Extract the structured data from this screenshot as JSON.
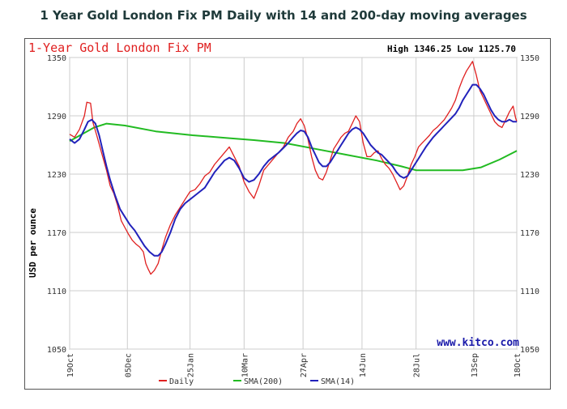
{
  "page_title": "1 Year Gold London Fix PM Daily with 14 and 200-day moving averages",
  "chart_data": {
    "type": "line",
    "title": "1-Year Gold London Fix PM",
    "high_low_text": "High 1346.25 Low 1125.70",
    "ylabel": "USD per ounce",
    "ylim": [
      1050,
      1350
    ],
    "yticks": [
      1050,
      1110,
      1170,
      1230,
      1290,
      1350
    ],
    "grid": true,
    "legend_position": "bottom",
    "watermark": "www.kitco.com",
    "x_ticks": [
      {
        "label": "19Oct",
        "day": 0
      },
      {
        "label": "05Dec",
        "day": 47
      },
      {
        "label": "25Jan",
        "day": 98
      },
      {
        "label": "10Mar",
        "day": 142
      },
      {
        "label": "27Apr",
        "day": 190
      },
      {
        "label": "14Jun",
        "day": 238
      },
      {
        "label": "28Jul",
        "day": 282
      },
      {
        "label": "13Sep",
        "day": 329
      },
      {
        "label": "18Oct",
        "day": 364
      }
    ],
    "series": [
      {
        "name": "Daily",
        "color": "#e02020",
        "points": [
          [
            0,
            1271
          ],
          [
            4,
            1268
          ],
          [
            8,
            1276
          ],
          [
            12,
            1290
          ],
          [
            14,
            1304
          ],
          [
            17,
            1303
          ],
          [
            19,
            1283
          ],
          [
            22,
            1270
          ],
          [
            26,
            1252
          ],
          [
            30,
            1234
          ],
          [
            33,
            1218
          ],
          [
            36,
            1210
          ],
          [
            39,
            1198
          ],
          [
            42,
            1182
          ],
          [
            45,
            1175
          ],
          [
            48,
            1168
          ],
          [
            51,
            1162
          ],
          [
            54,
            1158
          ],
          [
            57,
            1155
          ],
          [
            60,
            1150
          ],
          [
            62,
            1138
          ],
          [
            64,
            1132
          ],
          [
            66,
            1127
          ],
          [
            69,
            1131
          ],
          [
            72,
            1138
          ],
          [
            75,
            1152
          ],
          [
            78,
            1165
          ],
          [
            82,
            1178
          ],
          [
            86,
            1188
          ],
          [
            90,
            1196
          ],
          [
            94,
            1204
          ],
          [
            98,
            1212
          ],
          [
            102,
            1214
          ],
          [
            106,
            1220
          ],
          [
            110,
            1228
          ],
          [
            114,
            1232
          ],
          [
            118,
            1240
          ],
          [
            122,
            1246
          ],
          [
            126,
            1252
          ],
          [
            130,
            1258
          ],
          [
            134,
            1248
          ],
          [
            138,
            1238
          ],
          [
            142,
            1222
          ],
          [
            146,
            1212
          ],
          [
            150,
            1205
          ],
          [
            154,
            1218
          ],
          [
            158,
            1234
          ],
          [
            162,
            1240
          ],
          [
            166,
            1246
          ],
          [
            170,
            1252
          ],
          [
            174,
            1258
          ],
          [
            178,
            1268
          ],
          [
            182,
            1274
          ],
          [
            185,
            1282
          ],
          [
            188,
            1287
          ],
          [
            191,
            1280
          ],
          [
            194,
            1266
          ],
          [
            197,
            1248
          ],
          [
            200,
            1234
          ],
          [
            203,
            1226
          ],
          [
            206,
            1224
          ],
          [
            209,
            1232
          ],
          [
            212,
            1244
          ],
          [
            215,
            1256
          ],
          [
            218,
            1262
          ],
          [
            221,
            1268
          ],
          [
            224,
            1272
          ],
          [
            227,
            1274
          ],
          [
            230,
            1282
          ],
          [
            233,
            1290
          ],
          [
            236,
            1284
          ],
          [
            239,
            1262
          ],
          [
            242,
            1248
          ],
          [
            245,
            1248
          ],
          [
            248,
            1252
          ],
          [
            251,
            1254
          ],
          [
            254,
            1246
          ],
          [
            257,
            1240
          ],
          [
            260,
            1236
          ],
          [
            263,
            1230
          ],
          [
            266,
            1222
          ],
          [
            269,
            1214
          ],
          [
            272,
            1218
          ],
          [
            275,
            1228
          ],
          [
            278,
            1240
          ],
          [
            281,
            1248
          ],
          [
            284,
            1258
          ],
          [
            287,
            1262
          ],
          [
            290,
            1266
          ],
          [
            293,
            1270
          ],
          [
            296,
            1275
          ],
          [
            299,
            1278
          ],
          [
            302,
            1282
          ],
          [
            305,
            1286
          ],
          [
            308,
            1292
          ],
          [
            311,
            1298
          ],
          [
            314,
            1306
          ],
          [
            317,
            1318
          ],
          [
            320,
            1328
          ],
          [
            323,
            1336
          ],
          [
            326,
            1342
          ],
          [
            328,
            1346
          ],
          [
            331,
            1332
          ],
          [
            334,
            1316
          ],
          [
            337,
            1308
          ],
          [
            340,
            1300
          ],
          [
            343,
            1292
          ],
          [
            346,
            1284
          ],
          [
            349,
            1280
          ],
          [
            352,
            1278
          ],
          [
            355,
            1286
          ],
          [
            358,
            1294
          ],
          [
            361,
            1300
          ],
          [
            363,
            1288
          ],
          [
            364,
            1284
          ]
        ]
      },
      {
        "name": "SMA(200)",
        "color": "#22bb22",
        "points": [
          [
            0,
            1264
          ],
          [
            20,
            1278
          ],
          [
            30,
            1282
          ],
          [
            45,
            1280
          ],
          [
            70,
            1274
          ],
          [
            100,
            1270
          ],
          [
            130,
            1267
          ],
          [
            150,
            1265
          ],
          [
            175,
            1262
          ],
          [
            200,
            1256
          ],
          [
            225,
            1250
          ],
          [
            250,
            1244
          ],
          [
            270,
            1238
          ],
          [
            282,
            1234
          ],
          [
            300,
            1234
          ],
          [
            320,
            1234
          ],
          [
            335,
            1237
          ],
          [
            350,
            1245
          ],
          [
            364,
            1254
          ]
        ]
      },
      {
        "name": "SMA(14)",
        "color": "#2222bb",
        "points": [
          [
            0,
            1266
          ],
          [
            4,
            1262
          ],
          [
            8,
            1266
          ],
          [
            12,
            1276
          ],
          [
            15,
            1284
          ],
          [
            18,
            1286
          ],
          [
            21,
            1282
          ],
          [
            24,
            1270
          ],
          [
            27,
            1254
          ],
          [
            30,
            1238
          ],
          [
            33,
            1224
          ],
          [
            37,
            1208
          ],
          [
            41,
            1194
          ],
          [
            45,
            1186
          ],
          [
            49,
            1178
          ],
          [
            53,
            1172
          ],
          [
            57,
            1164
          ],
          [
            61,
            1156
          ],
          [
            65,
            1150
          ],
          [
            69,
            1146
          ],
          [
            72,
            1146
          ],
          [
            75,
            1150
          ],
          [
            78,
            1158
          ],
          [
            82,
            1170
          ],
          [
            86,
            1184
          ],
          [
            90,
            1194
          ],
          [
            94,
            1200
          ],
          [
            98,
            1204
          ],
          [
            102,
            1208
          ],
          [
            106,
            1212
          ],
          [
            110,
            1216
          ],
          [
            114,
            1224
          ],
          [
            118,
            1232
          ],
          [
            122,
            1238
          ],
          [
            126,
            1244
          ],
          [
            130,
            1247
          ],
          [
            134,
            1244
          ],
          [
            138,
            1236
          ],
          [
            142,
            1226
          ],
          [
            146,
            1222
          ],
          [
            150,
            1224
          ],
          [
            154,
            1230
          ],
          [
            158,
            1238
          ],
          [
            162,
            1244
          ],
          [
            166,
            1248
          ],
          [
            170,
            1252
          ],
          [
            174,
            1257
          ],
          [
            178,
            1262
          ],
          [
            182,
            1268
          ],
          [
            185,
            1272
          ],
          [
            188,
            1275
          ],
          [
            191,
            1274
          ],
          [
            194,
            1268
          ],
          [
            197,
            1258
          ],
          [
            200,
            1250
          ],
          [
            203,
            1242
          ],
          [
            206,
            1238
          ],
          [
            209,
            1238
          ],
          [
            212,
            1242
          ],
          [
            215,
            1248
          ],
          [
            218,
            1254
          ],
          [
            221,
            1260
          ],
          [
            224,
            1266
          ],
          [
            227,
            1272
          ],
          [
            230,
            1276
          ],
          [
            233,
            1278
          ],
          [
            236,
            1276
          ],
          [
            239,
            1272
          ],
          [
            242,
            1266
          ],
          [
            245,
            1260
          ],
          [
            248,
            1256
          ],
          [
            251,
            1252
          ],
          [
            254,
            1250
          ],
          [
            257,
            1246
          ],
          [
            260,
            1242
          ],
          [
            263,
            1238
          ],
          [
            266,
            1232
          ],
          [
            269,
            1228
          ],
          [
            272,
            1226
          ],
          [
            275,
            1228
          ],
          [
            278,
            1234
          ],
          [
            281,
            1240
          ],
          [
            284,
            1246
          ],
          [
            287,
            1252
          ],
          [
            290,
            1258
          ],
          [
            293,
            1263
          ],
          [
            296,
            1268
          ],
          [
            299,
            1272
          ],
          [
            302,
            1276
          ],
          [
            305,
            1280
          ],
          [
            308,
            1284
          ],
          [
            311,
            1288
          ],
          [
            314,
            1292
          ],
          [
            317,
            1298
          ],
          [
            320,
            1306
          ],
          [
            323,
            1312
          ],
          [
            326,
            1318
          ],
          [
            328,
            1322
          ],
          [
            331,
            1322
          ],
          [
            334,
            1318
          ],
          [
            337,
            1312
          ],
          [
            340,
            1304
          ],
          [
            343,
            1296
          ],
          [
            346,
            1290
          ],
          [
            349,
            1286
          ],
          [
            352,
            1284
          ],
          [
            355,
            1284
          ],
          [
            358,
            1286
          ],
          [
            361,
            1284
          ],
          [
            364,
            1284
          ]
        ]
      }
    ]
  }
}
